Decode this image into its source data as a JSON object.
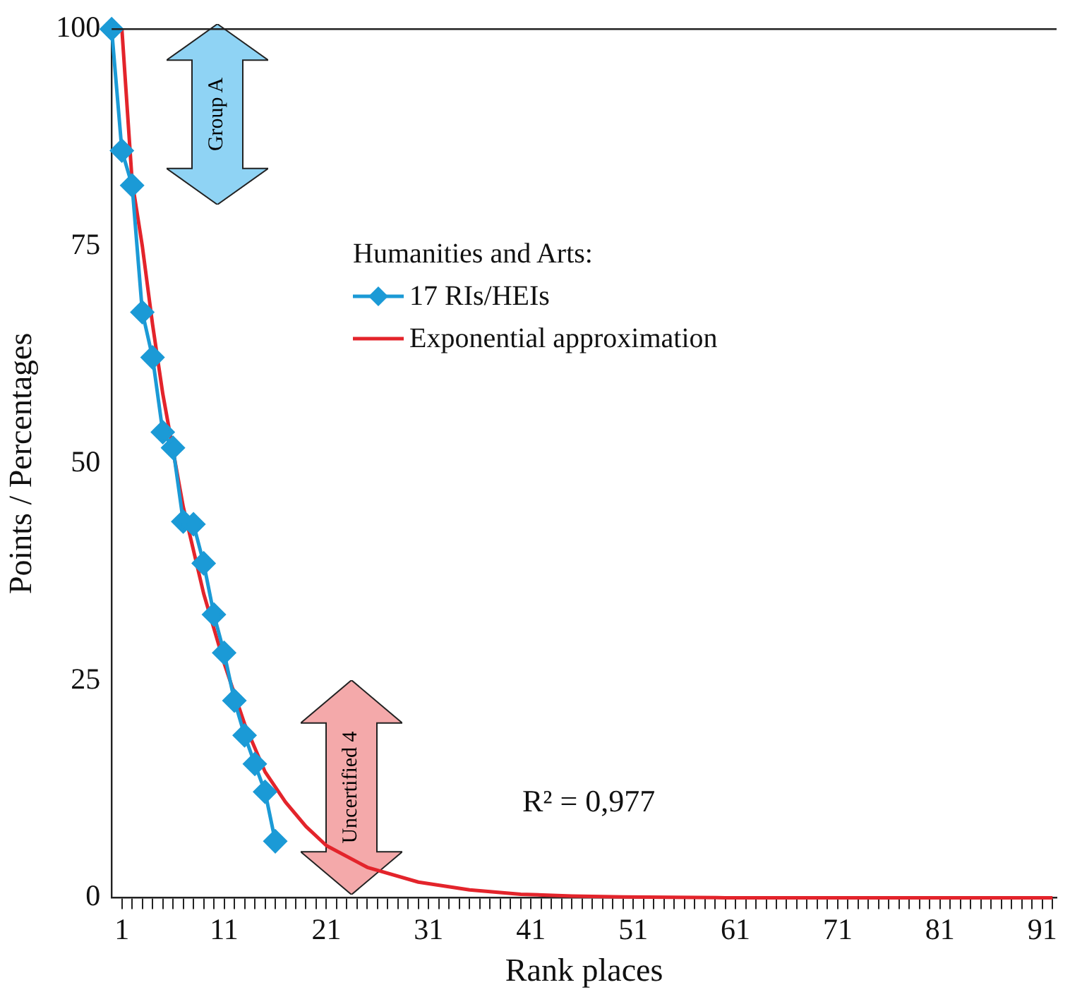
{
  "chart_data": {
    "type": "line",
    "xlabel": "Rank places",
    "ylabel": "Points / Percentages",
    "legend_title": "Humanities and Arts:",
    "xlim": [
      0,
      92.4
    ],
    "ylim": [
      0,
      100
    ],
    "yticks": [
      0,
      25,
      50,
      75,
      100
    ],
    "xticks": [
      {
        "value": 1,
        "label": "1"
      },
      {
        "value": 2,
        "label": null
      },
      {
        "value": 3,
        "label": null
      },
      {
        "value": 4,
        "label": null
      },
      {
        "value": 5,
        "label": null
      },
      {
        "value": 6,
        "label": null
      },
      {
        "value": 7,
        "label": null
      },
      {
        "value": 8,
        "label": null
      },
      {
        "value": 9,
        "label": null
      },
      {
        "value": 10,
        "label": null
      },
      {
        "value": 11,
        "label": "11"
      },
      {
        "value": 12,
        "label": null
      },
      {
        "value": 13,
        "label": null
      },
      {
        "value": 14,
        "label": null
      },
      {
        "value": 15,
        "label": null
      },
      {
        "value": 16,
        "label": null
      },
      {
        "value": 17,
        "label": null
      },
      {
        "value": 18,
        "label": null
      },
      {
        "value": 19,
        "label": null
      },
      {
        "value": 20,
        "label": null
      },
      {
        "value": 21,
        "label": "21"
      },
      {
        "value": 22,
        "label": null
      },
      {
        "value": 23,
        "label": null
      },
      {
        "value": 24,
        "label": null
      },
      {
        "value": 25,
        "label": null
      },
      {
        "value": 26,
        "label": null
      },
      {
        "value": 27,
        "label": null
      },
      {
        "value": 28,
        "label": null
      },
      {
        "value": 29,
        "label": null
      },
      {
        "value": 30,
        "label": null
      },
      {
        "value": 31,
        "label": "31"
      },
      {
        "value": 32,
        "label": null
      },
      {
        "value": 33,
        "label": null
      },
      {
        "value": 34,
        "label": null
      },
      {
        "value": 35,
        "label": null
      },
      {
        "value": 36,
        "label": null
      },
      {
        "value": 37,
        "label": null
      },
      {
        "value": 38,
        "label": null
      },
      {
        "value": 39,
        "label": null
      },
      {
        "value": 40,
        "label": null
      },
      {
        "value": 41,
        "label": "41"
      },
      {
        "value": 42,
        "label": null
      },
      {
        "value": 43,
        "label": null
      },
      {
        "value": 44,
        "label": null
      },
      {
        "value": 45,
        "label": null
      },
      {
        "value": 46,
        "label": null
      },
      {
        "value": 47,
        "label": null
      },
      {
        "value": 48,
        "label": null
      },
      {
        "value": 49,
        "label": null
      },
      {
        "value": 50,
        "label": null
      },
      {
        "value": 51,
        "label": "51"
      },
      {
        "value": 52,
        "label": null
      },
      {
        "value": 53,
        "label": null
      },
      {
        "value": 54,
        "label": null
      },
      {
        "value": 55,
        "label": null
      },
      {
        "value": 56,
        "label": null
      },
      {
        "value": 57,
        "label": null
      },
      {
        "value": 58,
        "label": null
      },
      {
        "value": 59,
        "label": null
      },
      {
        "value": 60,
        "label": null
      },
      {
        "value": 61,
        "label": "61"
      },
      {
        "value": 62,
        "label": null
      },
      {
        "value": 63,
        "label": null
      },
      {
        "value": 64,
        "label": null
      },
      {
        "value": 65,
        "label": null
      },
      {
        "value": 66,
        "label": null
      },
      {
        "value": 67,
        "label": null
      },
      {
        "value": 68,
        "label": null
      },
      {
        "value": 69,
        "label": null
      },
      {
        "value": 70,
        "label": null
      },
      {
        "value": 71,
        "label": "71"
      },
      {
        "value": 72,
        "label": null
      },
      {
        "value": 73,
        "label": null
      },
      {
        "value": 74,
        "label": null
      },
      {
        "value": 75,
        "label": null
      },
      {
        "value": 76,
        "label": null
      },
      {
        "value": 77,
        "label": null
      },
      {
        "value": 78,
        "label": null
      },
      {
        "value": 79,
        "label": null
      },
      {
        "value": 80,
        "label": null
      },
      {
        "value": 81,
        "label": "81"
      },
      {
        "value": 82,
        "label": null
      },
      {
        "value": 83,
        "label": null
      },
      {
        "value": 84,
        "label": null
      },
      {
        "value": 85,
        "label": null
      },
      {
        "value": 86,
        "label": null
      },
      {
        "value": 87,
        "label": null
      },
      {
        "value": 88,
        "label": null
      },
      {
        "value": 89,
        "label": null
      },
      {
        "value": 90,
        "label": null
      },
      {
        "value": 91,
        "label": "91"
      },
      {
        "value": 92,
        "label": null
      }
    ],
    "grid": false,
    "legend": "top",
    "series": [
      {
        "name": "17 RIs/HEIs",
        "color": "#1b9ad6",
        "marker": "diamond",
        "x": [
          0,
          1,
          2,
          3,
          4,
          5,
          6,
          7,
          8,
          9,
          10,
          11,
          12,
          13,
          14,
          15,
          16
        ],
        "values": [
          100,
          86,
          82,
          67.4,
          62.2,
          53.6,
          51.8,
          43.3,
          43,
          38.5,
          32.6,
          28.2,
          22.7,
          18.7,
          15.4,
          12.2,
          6.5
        ]
      },
      {
        "name": "Exponential approximation",
        "color": "#e3242b",
        "marker": "none",
        "x": [
          1,
          2,
          3,
          4,
          5,
          7,
          9,
          11,
          13,
          15,
          17,
          19,
          21,
          25,
          30,
          35,
          40,
          45,
          50,
          60,
          70,
          80,
          92
        ],
        "values": [
          100,
          82.5,
          75,
          66,
          58,
          45,
          35,
          27,
          20,
          14.5,
          11,
          8.2,
          6,
          3.5,
          1.8,
          0.9,
          0.4,
          0.2,
          0.1,
          0,
          0,
          0,
          0
        ]
      }
    ],
    "annotations": [
      "Group A",
      "Uncertified 4",
      "R² = 0,977"
    ]
  }
}
